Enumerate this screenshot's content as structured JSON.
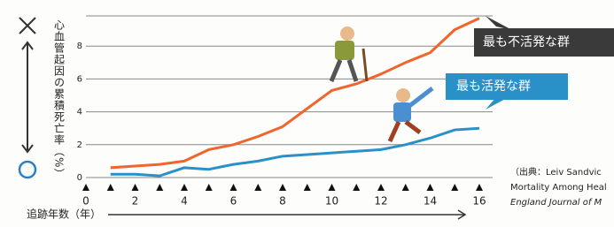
{
  "chart_data": {
    "type": "line",
    "y_label": "心血管起因の累積死亡率（%）",
    "x_label": "追跡年数（年）",
    "x": [
      1,
      2,
      3,
      4,
      5,
      6,
      7,
      8,
      9,
      10,
      11,
      12,
      13,
      14,
      15,
      16
    ],
    "series": [
      {
        "name": "最も不活発な群",
        "color": "#f0642d",
        "values": [
          0.6,
          0.7,
          0.8,
          1.0,
          1.7,
          2.0,
          2.5,
          3.1,
          4.2,
          5.3,
          5.7,
          6.3,
          7.0,
          7.6,
          9.0,
          9.7
        ]
      },
      {
        "name": "最も活発な群",
        "color": "#2a90c8",
        "values": [
          0.2,
          0.2,
          0.1,
          0.6,
          0.5,
          0.8,
          1.0,
          1.3,
          1.4,
          1.5,
          1.6,
          1.7,
          2.0,
          2.4,
          2.9,
          3.0
        ]
      }
    ],
    "xlim": [
      0,
      16
    ],
    "xticks": [
      0,
      2,
      4,
      6,
      8,
      10,
      12,
      14,
      16
    ],
    "ylim": [
      0,
      10
    ],
    "yticks": [
      0,
      2,
      4,
      6,
      8
    ],
    "grid": true,
    "source": [
      "（出典：Leiv Sandvic",
      "Mortality Among Heal",
      "England Journal of M"
    ]
  }
}
